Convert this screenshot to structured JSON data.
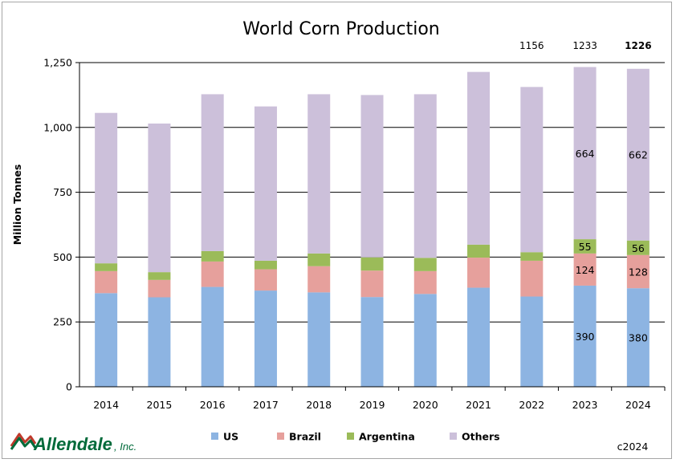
{
  "chart_data": {
    "type": "bar",
    "stacked": true,
    "title": "World Corn Production",
    "ylabel": "Million Tonnes",
    "xlabel": "",
    "ylim": [
      0,
      1250
    ],
    "yticks": [
      "0",
      "250",
      "500",
      "750",
      "1,000",
      "1,250"
    ],
    "ytick_values": [
      0,
      250,
      500,
      750,
      1000,
      1250
    ],
    "grid": true,
    "legend_position": "bottom",
    "categories": [
      "2014",
      "2015",
      "2016",
      "2017",
      "2018",
      "2019",
      "2020",
      "2021",
      "2022",
      "2023",
      "2024"
    ],
    "series": [
      {
        "name": "US",
        "color": "#8db4e2",
        "values": [
          361,
          345,
          385,
          371,
          364,
          346,
          358,
          382,
          348,
          390,
          380
        ]
      },
      {
        "name": "Brazil",
        "color": "#e6a09c",
        "values": [
          85,
          67,
          98,
          82,
          101,
          102,
          88,
          116,
          138,
          124,
          128
        ]
      },
      {
        "name": "Argentina",
        "color": "#9bbb59",
        "values": [
          30,
          30,
          40,
          33,
          49,
          51,
          51,
          50,
          33,
          55,
          56
        ]
      },
      {
        "name": "Others",
        "color": "#ccc0da",
        "values": [
          580,
          573,
          605,
          595,
          614,
          626,
          631,
          666,
          637,
          664,
          662
        ]
      }
    ],
    "data_labels": {
      "2023": {
        "US": "390",
        "Brazil": "124",
        "Argentina": "55",
        "Others": "664"
      },
      "2024": {
        "US": "380",
        "Brazil": "128",
        "Argentina": "56",
        "Others": "662"
      }
    },
    "total_labels": [
      {
        "category": "2022",
        "text": "1156",
        "bold": false
      },
      {
        "category": "2023",
        "text": "1233",
        "bold": false
      },
      {
        "category": "2024",
        "text": "1226",
        "bold": true
      }
    ]
  },
  "branding": {
    "logo_text": "Allendale",
    "logo_suffix": ", Inc.",
    "logo_icon": "allendale-mountain-logo-icon",
    "copyright": "c2024"
  }
}
